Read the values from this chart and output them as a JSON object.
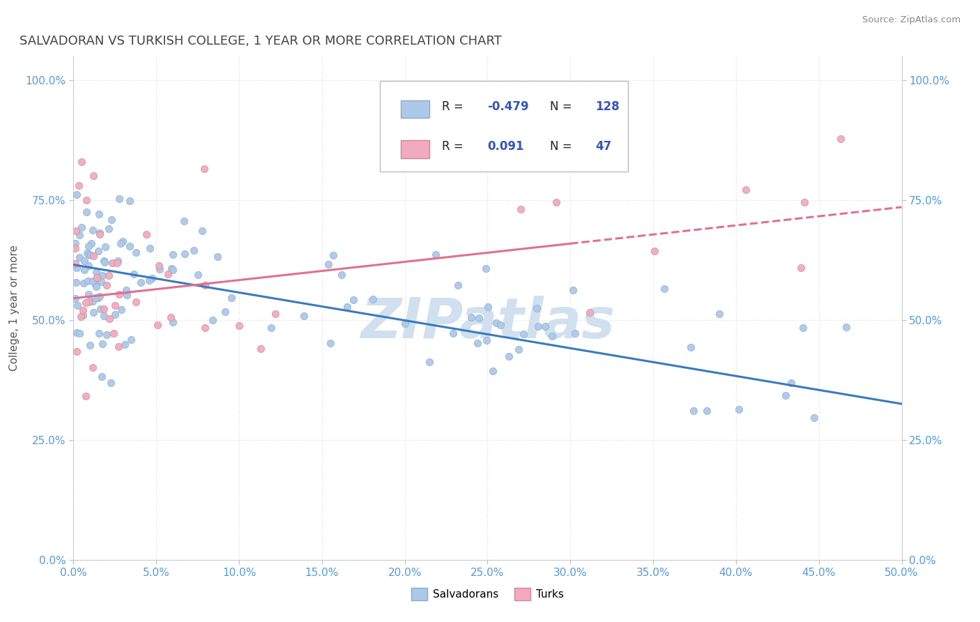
{
  "title": "SALVADORAN VS TURKISH COLLEGE, 1 YEAR OR MORE CORRELATION CHART",
  "source": "Source: ZipAtlas.com",
  "xlabel_vals": [
    0.0,
    0.05,
    0.1,
    0.15,
    0.2,
    0.25,
    0.3,
    0.35,
    0.4,
    0.45,
    0.5
  ],
  "ylabel_vals": [
    0.0,
    0.25,
    0.5,
    0.75,
    1.0
  ],
  "xlim": [
    0.0,
    0.5
  ],
  "ylim": [
    0.0,
    1.05
  ],
  "legend_blue_label": "Salvadorans",
  "legend_pink_label": "Turks",
  "blue_R": "-0.479",
  "blue_N": "128",
  "pink_R": "0.091",
  "pink_N": "47",
  "blue_dot_color": "#adc9e8",
  "pink_dot_color": "#f2abbe",
  "blue_line_color": "#3a7abf",
  "pink_line_color": "#e07090",
  "legend_blue_sq": "#adc9e8",
  "legend_pink_sq": "#f2abbe",
  "watermark_text": "ZIPatlas",
  "watermark_color": "#d0e0ef",
  "title_color": "#444444",
  "axis_tick_color": "#5599dd",
  "legend_text_color": "#3355bb",
  "legend_label_color": "#333333",
  "background_color": "#ffffff",
  "grid_color": "#dddddd",
  "blue_intercept": 0.615,
  "blue_slope": -0.58,
  "pink_intercept": 0.545,
  "pink_slope": 0.38
}
